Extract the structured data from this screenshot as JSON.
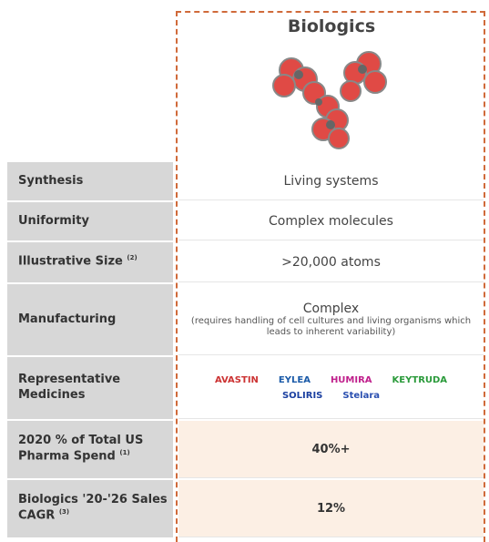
{
  "header": {
    "title": "Biologics"
  },
  "table": {
    "rows": [
      {
        "label": "Synthesis",
        "value": "Living systems"
      },
      {
        "label": "Uniformity",
        "value": "Complex molecules"
      },
      {
        "label": "Illustrative Size",
        "note": "(2)",
        "value": ">20,000 atoms"
      },
      {
        "label": "Manufacturing",
        "value": "Complex",
        "detail": "(requires handling of cell cultures and living organisms which leads to inherent variability)"
      },
      {
        "label": "Representative Medicines",
        "logos": [
          "AVASTIN",
          "EYLEA",
          "HUMIRA",
          "KEYTRUDA",
          "SOLIRIS",
          "Stelara"
        ]
      },
      {
        "label": "2020 % of Total US Pharma Spend",
        "note": "(1)",
        "value": "40%+"
      },
      {
        "label": "Biologics '20-'26 Sales CAGR",
        "note": "(3)",
        "value": "12%"
      }
    ]
  }
}
